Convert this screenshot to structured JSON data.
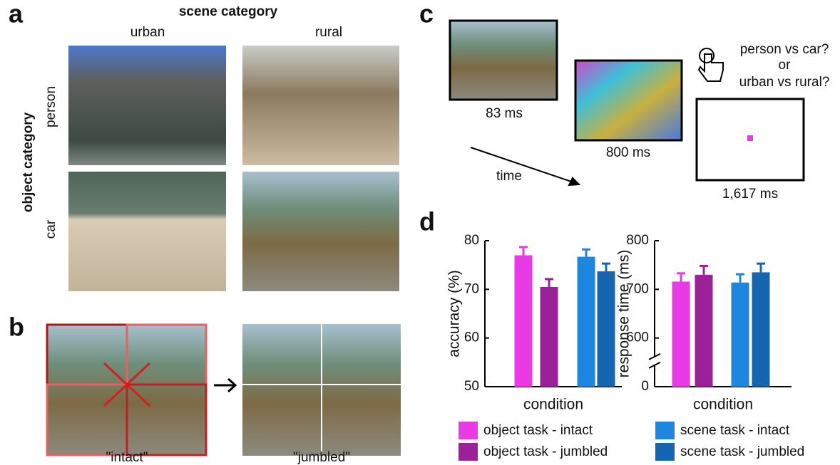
{
  "figure": {
    "panel_labels": [
      "a",
      "b",
      "c",
      "d"
    ],
    "panel_a": {
      "column_title": "scene category",
      "columns": [
        "urban",
        "rural"
      ],
      "row_title": "object category",
      "rows": [
        "person",
        "car"
      ]
    },
    "panel_b": {
      "labels": [
        "\"intact\"",
        "\"jumbled\""
      ]
    },
    "panel_c": {
      "durations": [
        "83 ms",
        "800 ms",
        "1,617 ms"
      ],
      "time_label": "time",
      "question_lines": [
        "person vs car?",
        "or",
        "urban vs rural?"
      ]
    }
  },
  "chart_data": [
    {
      "type": "bar",
      "xlabel": "condition",
      "ylabel": "accuracy (%)",
      "ylim": [
        50,
        80
      ],
      "yticks": [
        50,
        60,
        70,
        80
      ],
      "series": [
        {
          "name": "object task - intact",
          "color": "#e83be6",
          "values": [
            77
          ],
          "errors": [
            1.7
          ]
        },
        {
          "name": "object task - jumbled",
          "color": "#9a2198",
          "values": [
            70.5
          ],
          "errors": [
            1.6
          ]
        },
        {
          "name": "scene task - intact",
          "color": "#1f86e0",
          "values": [
            76.7
          ],
          "errors": [
            1.5
          ]
        },
        {
          "name": "scene task - jumbled",
          "color": "#1565b0",
          "values": [
            73.7
          ],
          "errors": [
            1.6
          ]
        }
      ]
    },
    {
      "type": "bar",
      "xlabel": "condition",
      "ylabel": "response time (ms)",
      "ylim": [
        0,
        800
      ],
      "yticks": [
        0,
        600,
        700,
        800
      ],
      "axis_break": true,
      "series": [
        {
          "color": "#e83be6",
          "values": [
            716
          ],
          "errors": [
            17
          ]
        },
        {
          "color": "#9a2198",
          "values": [
            730
          ],
          "errors": [
            18
          ]
        },
        {
          "color": "#1f86e0",
          "values": [
            714
          ],
          "errors": [
            17
          ]
        },
        {
          "color": "#1565b0",
          "values": [
            735
          ],
          "errors": [
            18
          ]
        }
      ]
    }
  ]
}
